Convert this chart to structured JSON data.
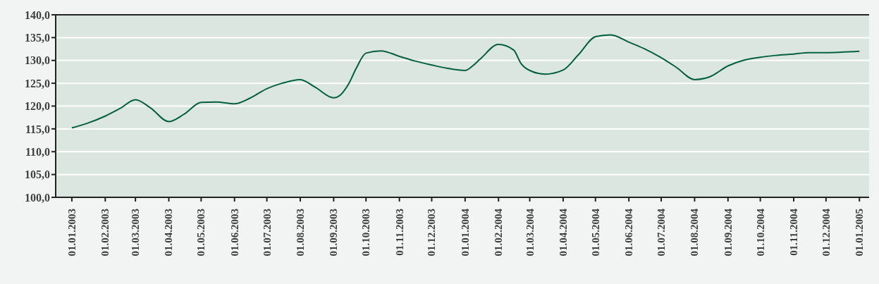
{
  "chart_data": {
    "type": "line",
    "x": [
      "2003-01-01",
      "2003-01-15",
      "2003-02-01",
      "2003-02-15",
      "2003-03-01",
      "2003-03-15",
      "2003-04-01",
      "2003-04-15",
      "2003-05-01",
      "2003-05-15",
      "2003-06-01",
      "2003-06-15",
      "2003-07-01",
      "2003-07-15",
      "2003-08-01",
      "2003-08-15",
      "2003-09-01",
      "2003-09-08",
      "2003-09-15",
      "2003-09-22",
      "2003-10-01",
      "2003-10-15",
      "2003-11-01",
      "2003-11-15",
      "2003-12-01",
      "2003-12-15",
      "2004-01-01",
      "2004-01-08",
      "2004-01-15",
      "2004-02-01",
      "2004-02-15",
      "2004-02-22",
      "2004-03-01",
      "2004-03-15",
      "2004-04-01",
      "2004-04-15",
      "2004-05-01",
      "2004-05-15",
      "2004-06-01",
      "2004-06-15",
      "2004-07-01",
      "2004-07-15",
      "2004-08-01",
      "2004-08-15",
      "2004-09-01",
      "2004-09-15",
      "2004-10-01",
      "2004-10-15",
      "2004-11-01",
      "2004-11-15",
      "2004-12-01",
      "2004-12-15",
      "2005-01-01"
    ],
    "series": [
      {
        "color": "#006040",
        "values": [
          115.2,
          116.2,
          117.8,
          119.5,
          121.4,
          119.6,
          116.6,
          118.2,
          120.8,
          120.9,
          120.5,
          121.7,
          123.8,
          125.0,
          125.8,
          124.1,
          121.8,
          122.6,
          124.9,
          128.3,
          131.6,
          132.1,
          130.9,
          129.9,
          129.0,
          128.3,
          127.8,
          128.8,
          130.3,
          133.5,
          132.3,
          129.3,
          127.8,
          127.0,
          127.9,
          131.2,
          135.2,
          135.6,
          134.0,
          132.6,
          130.6,
          128.5,
          125.8,
          126.4,
          128.8,
          130.0,
          130.7,
          131.1,
          131.4,
          131.7,
          131.7,
          131.8,
          132.0
        ]
      }
    ],
    "xlim": [
      "2002-12-17",
      "2005-01-10"
    ],
    "xticks": [
      {
        "value": "2003-01-01",
        "label": "01.01.2003"
      },
      {
        "value": "2003-02-01",
        "label": "01.02.2003"
      },
      {
        "value": "2003-03-01",
        "label": "01.03.2003"
      },
      {
        "value": "2003-04-01",
        "label": "01.04.2003"
      },
      {
        "value": "2003-05-01",
        "label": "01.05.2003"
      },
      {
        "value": "2003-06-01",
        "label": "01.06.2003"
      },
      {
        "value": "2003-07-01",
        "label": "01.07.2003"
      },
      {
        "value": "2003-08-01",
        "label": "01.08.2003"
      },
      {
        "value": "2003-09-01",
        "label": "01.09.2003"
      },
      {
        "value": "2003-10-01",
        "label": "01.10.2003"
      },
      {
        "value": "2003-11-01",
        "label": "01.11.2003"
      },
      {
        "value": "2003-12-01",
        "label": "01.12.2003"
      },
      {
        "value": "2004-01-01",
        "label": "01.01.2004"
      },
      {
        "value": "2004-02-01",
        "label": "01.02.2004"
      },
      {
        "value": "2004-03-01",
        "label": "01.03.2004"
      },
      {
        "value": "2004-04-01",
        "label": "01.04.2004"
      },
      {
        "value": "2004-05-01",
        "label": "01.05.2004"
      },
      {
        "value": "2004-06-01",
        "label": "01.06.2004"
      },
      {
        "value": "2004-07-01",
        "label": "01.07.2004"
      },
      {
        "value": "2004-08-01",
        "label": "01.08.2004"
      },
      {
        "value": "2004-09-01",
        "label": "01.09.2004"
      },
      {
        "value": "2004-10-01",
        "label": "01.10.2004"
      },
      {
        "value": "2004-11-01",
        "label": "01.11.2004"
      },
      {
        "value": "2004-12-01",
        "label": "01.12.2004"
      },
      {
        "value": "2005-01-01",
        "label": "01.01.2005"
      }
    ],
    "ylim": [
      100,
      140
    ],
    "yticks": [
      {
        "value": 100,
        "label": "100,0"
      },
      {
        "value": 105,
        "label": "105,0"
      },
      {
        "value": 110,
        "label": "110,0"
      },
      {
        "value": 115,
        "label": "115,0"
      },
      {
        "value": 120,
        "label": "120,0"
      },
      {
        "value": 125,
        "label": "125,0"
      },
      {
        "value": 130,
        "label": "130,0"
      },
      {
        "value": 135,
        "label": "135,0"
      },
      {
        "value": 140,
        "label": "140,0"
      }
    ],
    "grid": "y",
    "legend": false,
    "marker": "none",
    "line_style": "solid"
  }
}
